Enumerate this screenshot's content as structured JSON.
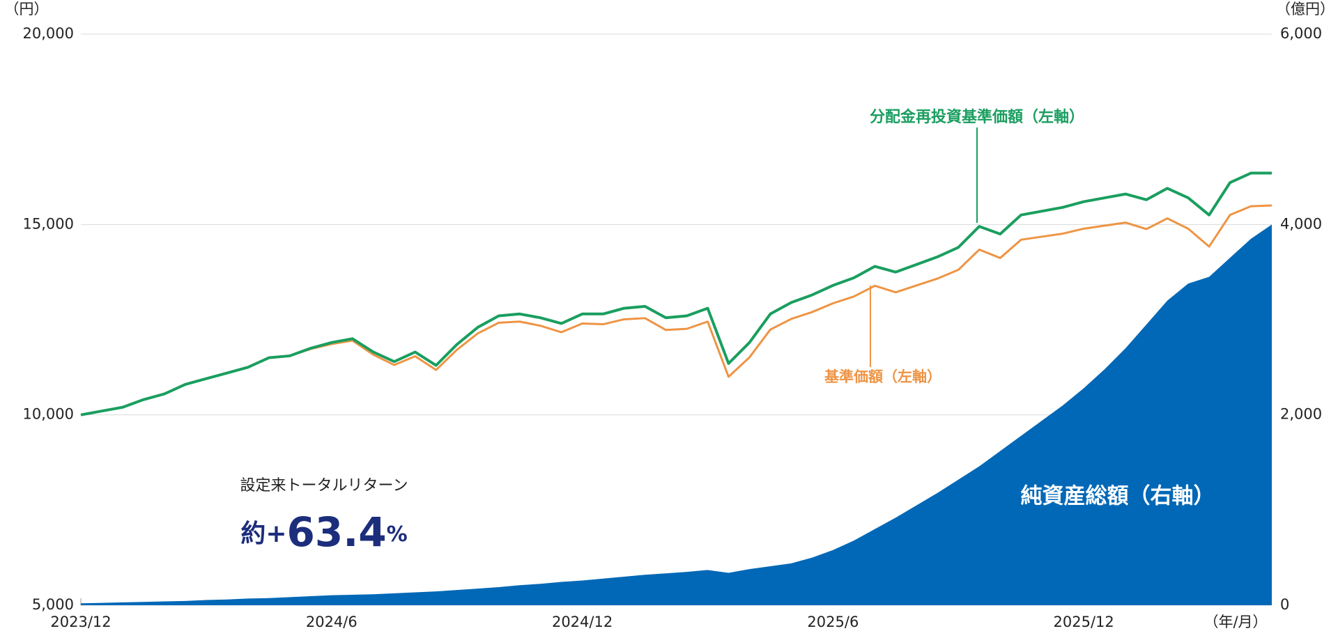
{
  "chart_data": {
    "type": "line",
    "x": [
      0,
      0.5,
      1,
      1.5,
      2,
      2.5,
      3,
      3.5,
      4,
      4.5,
      5,
      5.5,
      6,
      6.5,
      7,
      7.5,
      8,
      8.5,
      9,
      9.5,
      10,
      10.5,
      11,
      11.5,
      12,
      12.5,
      13,
      13.5,
      14,
      14.5,
      15,
      15.5,
      16,
      16.5,
      17,
      17.5,
      18,
      18.5,
      19,
      19.5,
      20,
      20.5,
      21,
      21.5,
      22,
      22.5,
      23,
      23.5,
      24,
      24.5,
      25,
      25.5,
      26,
      26.5,
      27,
      27.5,
      28,
      28.5
    ],
    "xlim": [
      0,
      28.5
    ],
    "xticks": [
      {
        "value": 0,
        "label": "2023/12"
      },
      {
        "value": 6,
        "label": "2024/6"
      },
      {
        "value": 12,
        "label": "2024/12"
      },
      {
        "value": 18,
        "label": "2025/6"
      },
      {
        "value": 24,
        "label": "2025/12"
      }
    ],
    "x_unit_label": "（年/月）",
    "ylim": [
      5000,
      20000
    ],
    "yticks": [
      {
        "value": 5000,
        "label": "5,000"
      },
      {
        "value": 10000,
        "label": "10,000"
      },
      {
        "value": 15000,
        "label": "15,000"
      },
      {
        "value": 20000,
        "label": "20,000"
      }
    ],
    "y_unit_label": "（円）",
    "y2lim": [
      0,
      6000
    ],
    "y2ticks": [
      0,
      {
        "value": 2000,
        "label": "2,000"
      },
      {
        "value": 4000,
        "label": "4,000"
      },
      {
        "value": 6000,
        "label": "6,000"
      }
    ],
    "y2_unit_label": "（億円）",
    "grid": true,
    "series": [
      {
        "name": "純資産総額（右軸）",
        "type": "area",
        "axis": "y2",
        "color": "#0068b7",
        "values": [
          20,
          25,
          30,
          35,
          40,
          45,
          55,
          60,
          70,
          75,
          85,
          95,
          105,
          110,
          115,
          125,
          135,
          145,
          160,
          175,
          190,
          210,
          225,
          245,
          260,
          280,
          300,
          320,
          335,
          350,
          370,
          340,
          380,
          410,
          440,
          500,
          580,
          680,
          800,
          920,
          1050,
          1180,
          1320,
          1460,
          1620,
          1780,
          1940,
          2100,
          2280,
          2480,
          2700,
          2950,
          3200,
          3380,
          3450,
          3650,
          3850,
          4000
        ]
      },
      {
        "name": "基準価額（左軸）",
        "type": "line",
        "color": "#ee9444",
        "values": [
          10000,
          10100,
          10200,
          10400,
          10550,
          10800,
          10950,
          11100,
          11250,
          11500,
          11550,
          11730,
          11860,
          11950,
          11580,
          11310,
          11540,
          11180,
          11710,
          12140,
          12420,
          12450,
          12340,
          12170,
          12400,
          12380,
          12510,
          12540,
          12230,
          12260,
          12450,
          11000,
          11510,
          12240,
          12520,
          12700,
          12930,
          13110,
          13390,
          13220,
          13400,
          13580,
          13810,
          14340,
          14120,
          14600,
          14680,
          14760,
          14890,
          14970,
          15050,
          14880,
          15160,
          14890,
          14420,
          15250,
          15480,
          15500
        ]
      },
      {
        "name": "分配金再投資基準価額（左軸）",
        "type": "line",
        "color": "#1a9e5f",
        "values": [
          10000,
          10100,
          10200,
          10400,
          10550,
          10800,
          10950,
          11100,
          11250,
          11500,
          11550,
          11750,
          11900,
          12000,
          11650,
          11400,
          11650,
          11300,
          11850,
          12300,
          12600,
          12650,
          12550,
          12400,
          12650,
          12650,
          12800,
          12850,
          12550,
          12600,
          12800,
          11350,
          11900,
          12650,
          12950,
          13150,
          13400,
          13600,
          13900,
          13750,
          13950,
          14150,
          14400,
          14950,
          14750,
          15250,
          15350,
          15450,
          15600,
          15700,
          15800,
          15650,
          15950,
          15700,
          15250,
          16100,
          16350,
          16350
        ]
      }
    ],
    "total_return_label": "設定来トータルリターン",
    "total_return": {
      "prefix": "約+",
      "value": 63.4,
      "unit": "%"
    }
  }
}
